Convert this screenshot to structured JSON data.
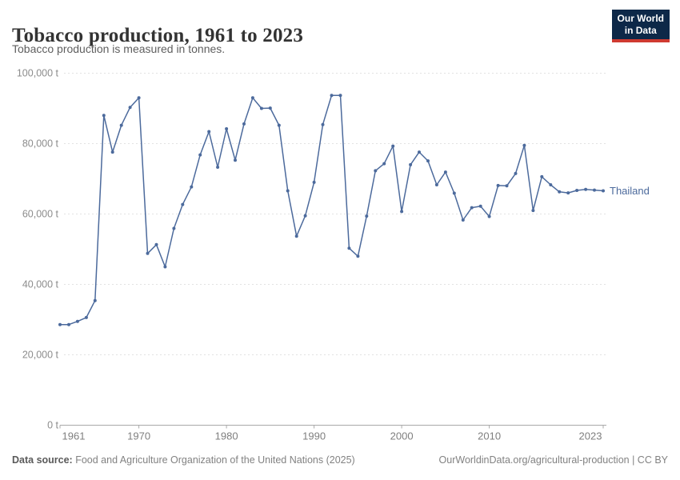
{
  "header": {
    "title": "Tobacco production, 1961 to 2023",
    "subtitle": "Tobacco production is measured in tonnes.",
    "logo": {
      "line1": "Our World",
      "line2": "in Data",
      "bg_color": "#0d2848",
      "accent_color": "#cf3a31"
    }
  },
  "chart_data": {
    "type": "line",
    "title": "Tobacco production, 1961 to 2023",
    "xlabel": "",
    "ylabel": "Tobacco production (tonnes)",
    "unit": "t",
    "xlim": [
      1961,
      2023
    ],
    "ylim": [
      0,
      100000
    ],
    "grid": "horizontal-dashed",
    "legend_position": "end-of-line-label",
    "xticks": [
      1961,
      1970,
      1980,
      1990,
      2000,
      2010,
      2023
    ],
    "yticks": [
      0,
      20000,
      40000,
      60000,
      80000,
      100000
    ],
    "ytick_labels": [
      "0 t",
      "20,000 t",
      "40,000 t",
      "60,000 t",
      "80,000 t",
      "100,000 t"
    ],
    "series": [
      {
        "name": "Thailand",
        "color": "#4c6a9c",
        "x": [
          1961,
          1962,
          1963,
          1964,
          1965,
          1966,
          1967,
          1968,
          1969,
          1970,
          1971,
          1972,
          1973,
          1974,
          1975,
          1976,
          1977,
          1978,
          1979,
          1980,
          1981,
          1982,
          1983,
          1984,
          1985,
          1986,
          1987,
          1988,
          1989,
          1990,
          1991,
          1992,
          1993,
          1994,
          1995,
          1996,
          1997,
          1998,
          1999,
          2000,
          2001,
          2002,
          2003,
          2004,
          2005,
          2006,
          2007,
          2008,
          2009,
          2010,
          2011,
          2012,
          2013,
          2014,
          2015,
          2016,
          2017,
          2018,
          2019,
          2020,
          2021,
          2022,
          2023
        ],
        "values": [
          28600,
          28600,
          29500,
          30600,
          35400,
          88000,
          77600,
          85200,
          90300,
          93000,
          48800,
          51300,
          45000,
          55900,
          62700,
          67700,
          76800,
          83400,
          73300,
          84200,
          75300,
          85600,
          93000,
          90000,
          90100,
          85200,
          66600,
          53700,
          59500,
          69000,
          85400,
          93700,
          93700,
          50300,
          48000,
          59400,
          72300,
          74300,
          79300,
          60700,
          74000,
          77600,
          75100,
          68300,
          71900,
          65900,
          58300,
          61800,
          62200,
          59300,
          68100,
          68000,
          71500,
          79500,
          61000,
          70600,
          68300,
          66300,
          66000,
          66700,
          67000,
          66800,
          66600
        ]
      }
    ]
  },
  "footer": {
    "source_label": "Data source:",
    "source_text": " Food and Agriculture Organization of the United Nations (2025)",
    "attribution": "OurWorldinData.org/agricultural-production | CC BY"
  }
}
